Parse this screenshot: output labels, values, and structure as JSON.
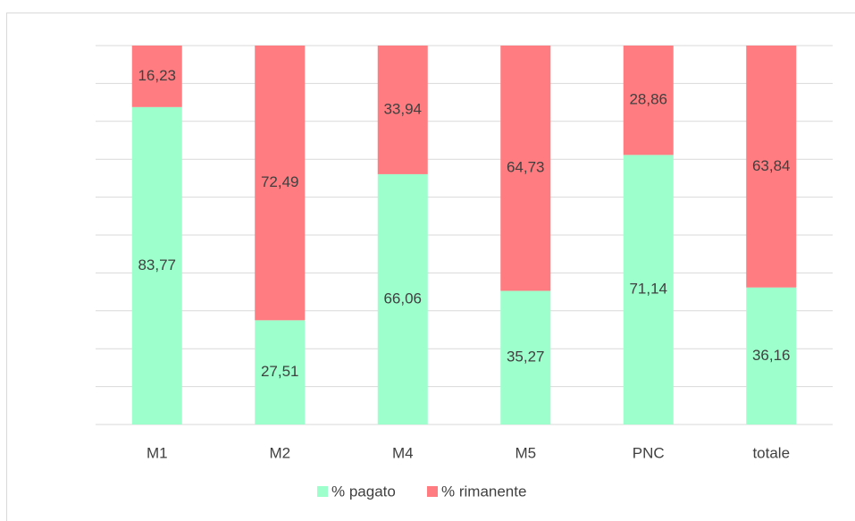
{
  "chart_data": {
    "type": "stacked_bar",
    "categories": [
      "M1",
      "M2",
      "M4",
      "M5",
      "PNC",
      "totale"
    ],
    "series": [
      {
        "name": "% pagato",
        "color": "#9CFFCC",
        "values": [
          83.77,
          27.51,
          66.06,
          35.27,
          71.14,
          36.16
        ],
        "value_labels": [
          "83,77",
          "27,51",
          "66,06",
          "35,27",
          "71,14",
          "36,16"
        ]
      },
      {
        "name": "% rimanente",
        "color": "#FF7C80",
        "values": [
          16.23,
          72.49,
          33.94,
          64.73,
          28.86,
          63.84
        ],
        "value_labels": [
          "16,23",
          "72,49",
          "33,94",
          "64,73",
          "28,86",
          "63,84"
        ]
      }
    ],
    "ylim": [
      0,
      100
    ],
    "yticks": [
      0,
      10,
      20,
      30,
      40,
      50,
      60,
      70,
      80,
      90,
      100
    ],
    "grid": true,
    "legend": "bottom"
  }
}
